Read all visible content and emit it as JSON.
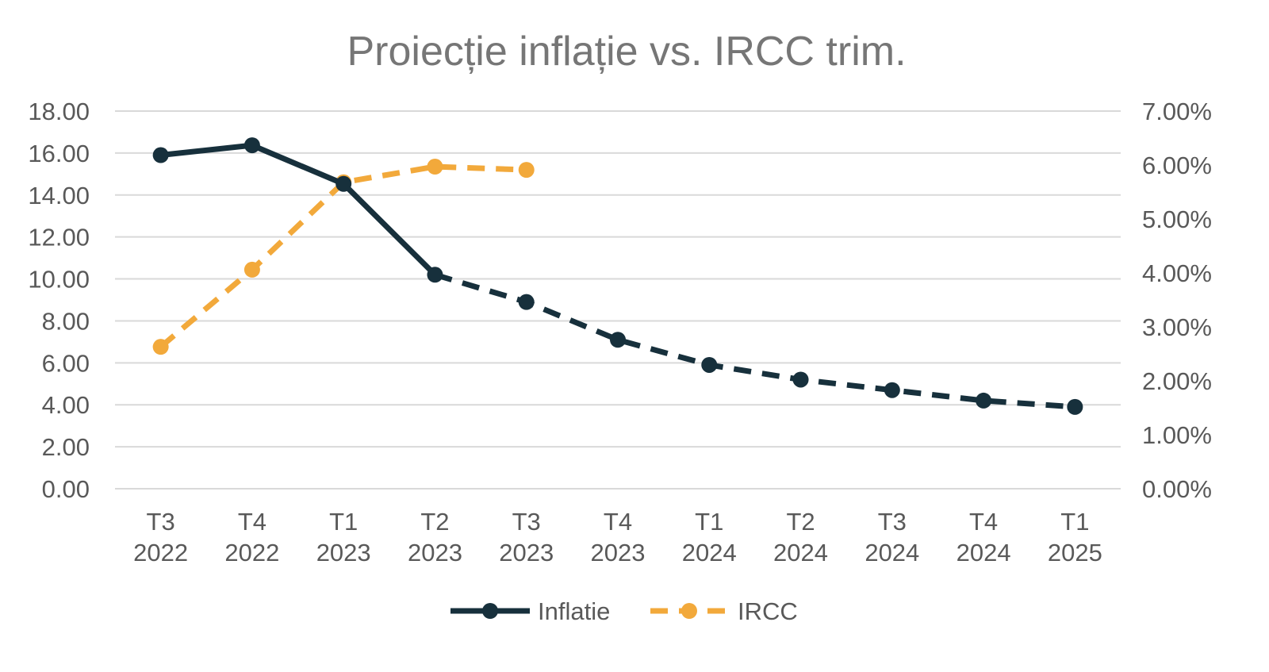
{
  "chart_data": {
    "type": "line",
    "title": "Proiecție inflație vs. IRCC trim.",
    "categories": [
      [
        "T3",
        "2022"
      ],
      [
        "T4",
        "2022"
      ],
      [
        "T1",
        "2023"
      ],
      [
        "T2",
        "2023"
      ],
      [
        "T3",
        "2023"
      ],
      [
        "T4",
        "2023"
      ],
      [
        "T1",
        "2024"
      ],
      [
        "T2",
        "2024"
      ],
      [
        "T3",
        "2024"
      ],
      [
        "T4",
        "2024"
      ],
      [
        "T1",
        "2025"
      ]
    ],
    "y_left": {
      "min": 0,
      "max": 18,
      "step": 2,
      "tick_labels": [
        "0.00",
        "2.00",
        "4.00",
        "6.00",
        "8.00",
        "10.00",
        "12.00",
        "14.00",
        "16.00",
        "18.00"
      ]
    },
    "y_right": {
      "min": 0,
      "max": 0.07,
      "step": 0.01,
      "tick_labels": [
        "0.00%",
        "1.00%",
        "2.00%",
        "3.00%",
        "4.00%",
        "5.00%",
        "6.00%",
        "7.00%"
      ]
    },
    "grid": true,
    "legend_position": "bottom",
    "series": [
      {
        "name": "Inflatie",
        "axis": "left",
        "color": "#17303c",
        "values": [
          15.9,
          16.37,
          14.53,
          10.2,
          8.9,
          7.1,
          5.9,
          5.2,
          4.7,
          4.2,
          3.9
        ],
        "solid_through_index": 3
      },
      {
        "name": "IRCC",
        "axis": "right",
        "color": "#f2a93b",
        "values": [
          0.0263,
          0.0406,
          0.0568,
          0.0597,
          0.0591,
          null,
          null,
          null,
          null,
          null,
          null
        ],
        "line_style": "dashed"
      }
    ]
  }
}
